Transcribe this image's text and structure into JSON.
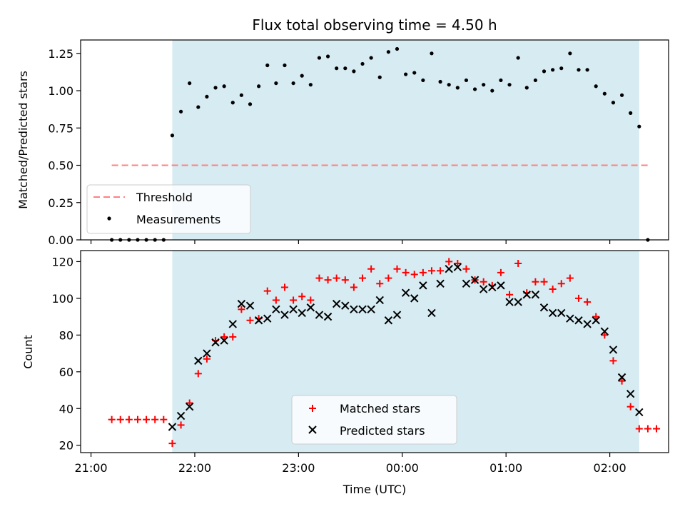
{
  "chart_data": [
    {
      "type": "scatter",
      "title": "Flux total observing time = 4.50 h",
      "ylabel": "Matched/Predicted stars",
      "xlabel": "",
      "ylim": [
        0,
        1.34
      ],
      "yticks": [
        "0.00",
        "0.25",
        "0.50",
        "0.75",
        "1.00",
        "1.25"
      ],
      "ytick_values": [
        0,
        0.25,
        0.5,
        0.75,
        1.0,
        1.25
      ],
      "highlight_color": "#add8e6",
      "legend": {
        "placement": "lower-left",
        "entries": [
          "Threshold",
          "Measurements"
        ]
      },
      "threshold": {
        "name": "Threshold",
        "value": 0.5,
        "x_start": "21:12",
        "x_end": "02:22",
        "color": "#ff7f7f"
      },
      "series": [
        {
          "name": "Measurements",
          "color": "#000000",
          "x": [
            "21:12",
            "21:17",
            "21:22",
            "21:27",
            "21:32",
            "21:37",
            "21:42",
            "21:47",
            "21:52",
            "21:57",
            "22:02",
            "22:07",
            "22:12",
            "22:17",
            "22:22",
            "22:27",
            "22:32",
            "22:37",
            "22:42",
            "22:47",
            "22:52",
            "22:57",
            "23:02",
            "23:07",
            "23:12",
            "23:17",
            "23:22",
            "23:27",
            "23:32",
            "23:37",
            "23:42",
            "23:47",
            "23:52",
            "23:57",
            "00:02",
            "00:07",
            "00:12",
            "00:17",
            "00:22",
            "00:27",
            "00:32",
            "00:37",
            "00:42",
            "00:47",
            "00:52",
            "00:57",
            "01:02",
            "01:07",
            "01:12",
            "01:17",
            "01:22",
            "01:27",
            "01:32",
            "01:37",
            "01:42",
            "01:47",
            "01:52",
            "01:57",
            "02:02",
            "02:07",
            "02:12",
            "02:17",
            "02:22"
          ],
          "y": [
            0,
            0,
            0,
            0,
            0,
            0,
            0,
            0.7,
            0.86,
            1.05,
            0.89,
            0.96,
            1.02,
            1.03,
            0.92,
            0.97,
            0.91,
            1.03,
            1.17,
            1.05,
            1.17,
            1.05,
            1.1,
            1.04,
            1.22,
            1.23,
            1.15,
            1.15,
            1.13,
            1.18,
            1.22,
            1.09,
            1.26,
            1.28,
            1.11,
            1.12,
            1.07,
            1.25,
            1.06,
            1.04,
            1.02,
            1.07,
            1.01,
            1.04,
            1.0,
            1.07,
            1.04,
            1.22,
            1.02,
            1.07,
            1.13,
            1.14,
            1.15,
            1.25,
            1.14,
            1.14,
            1.03,
            0.98,
            0.92,
            0.97,
            0.85,
            0.76,
            0
          ]
        }
      ]
    },
    {
      "type": "scatter",
      "title": "",
      "ylabel": "Count",
      "xlabel": "Time (UTC)",
      "ylim": [
        16,
        126
      ],
      "yticks": [
        "20",
        "40",
        "60",
        "80",
        "100",
        "120"
      ],
      "ytick_values": [
        20,
        40,
        60,
        80,
        100,
        120
      ],
      "x_tick_labels": [
        "21:00",
        "22:00",
        "23:00",
        "00:00",
        "01:00",
        "02:00"
      ],
      "highlight_span": [
        "21:47",
        "02:17"
      ],
      "highlight_color": "#add8e6",
      "legend": {
        "placement": "lower-center",
        "entries": [
          "Matched stars",
          "Predicted stars"
        ]
      },
      "series": [
        {
          "name": "Matched stars",
          "marker": "+",
          "color": "#ff0000",
          "x": [
            "21:12",
            "21:17",
            "21:22",
            "21:27",
            "21:32",
            "21:37",
            "21:42",
            "21:47",
            "21:52",
            "21:57",
            "22:02",
            "22:07",
            "22:12",
            "22:17",
            "22:22",
            "22:27",
            "22:32",
            "22:37",
            "22:42",
            "22:47",
            "22:52",
            "22:57",
            "23:02",
            "23:07",
            "23:12",
            "23:17",
            "23:22",
            "23:27",
            "23:32",
            "23:37",
            "23:42",
            "23:47",
            "23:52",
            "23:57",
            "00:02",
            "00:07",
            "00:12",
            "00:17",
            "00:22",
            "00:27",
            "00:32",
            "00:37",
            "00:42",
            "00:47",
            "00:52",
            "00:57",
            "01:02",
            "01:07",
            "01:12",
            "01:17",
            "01:22",
            "01:27",
            "01:32",
            "01:37",
            "01:42",
            "01:47",
            "01:52",
            "01:57",
            "02:02",
            "02:07",
            "02:12",
            "02:17",
            "02:22",
            "02:27"
          ],
          "y": [
            34,
            34,
            34,
            34,
            34,
            34,
            34,
            21,
            31,
            43,
            59,
            67,
            77,
            79,
            79,
            94,
            88,
            89,
            104,
            99,
            106,
            99,
            101,
            99,
            111,
            110,
            111,
            110,
            106,
            111,
            116,
            108,
            111,
            116,
            114,
            113,
            114,
            115,
            115,
            120,
            119,
            116,
            110,
            109,
            107,
            114,
            102,
            119,
            103,
            109,
            109,
            105,
            108,
            111,
            100,
            98,
            90,
            80,
            66,
            55,
            41,
            29,
            29,
            29
          ]
        },
        {
          "name": "Predicted stars",
          "marker": "x",
          "color": "#000000",
          "x": [
            "21:47",
            "21:52",
            "21:57",
            "22:02",
            "22:07",
            "22:12",
            "22:17",
            "22:22",
            "22:27",
            "22:32",
            "22:37",
            "22:42",
            "22:47",
            "22:52",
            "22:57",
            "23:02",
            "23:07",
            "23:12",
            "23:17",
            "23:22",
            "23:27",
            "23:32",
            "23:37",
            "23:42",
            "23:47",
            "23:52",
            "23:57",
            "00:02",
            "00:07",
            "00:12",
            "00:17",
            "00:22",
            "00:27",
            "00:32",
            "00:37",
            "00:42",
            "00:47",
            "00:52",
            "00:57",
            "01:02",
            "01:07",
            "01:12",
            "01:17",
            "01:22",
            "01:27",
            "01:32",
            "01:37",
            "01:42",
            "01:47",
            "01:52",
            "01:57",
            "02:02",
            "02:07",
            "02:12",
            "02:17"
          ],
          "y": [
            30,
            36,
            41,
            66,
            70,
            76,
            77,
            86,
            97,
            96,
            88,
            89,
            94,
            91,
            94,
            92,
            95,
            91,
            90,
            97,
            96,
            94,
            94,
            94,
            99,
            88,
            91,
            103,
            100,
            107,
            92,
            108,
            116,
            117,
            108,
            110,
            105,
            106,
            107,
            98,
            98,
            102,
            102,
            95,
            92,
            92,
            89,
            88,
            86,
            88,
            82,
            72,
            57,
            48,
            38
          ]
        }
      ]
    }
  ]
}
